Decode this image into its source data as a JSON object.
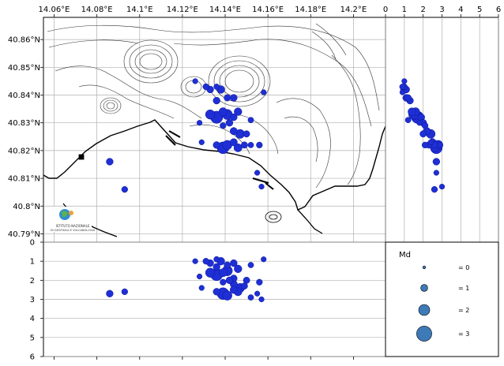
{
  "map": {
    "lon_ticks": [
      "14.06°E",
      "14.08°E",
      "14.1°E",
      "14.12°E",
      "14.14°E",
      "14.16°E",
      "14.18°E",
      "14.2°E"
    ],
    "lat_ticks": [
      "40.86°N",
      "40.85°N",
      "40.84°N",
      "40.83°N",
      "40.82°N",
      "40.81°N",
      "40.8°N",
      "40.79°N"
    ],
    "logo_text": [
      "ISTITUTO NAZIONALE",
      "DI GEOFISICA E VULCANOLOGIA"
    ]
  },
  "depth_right": {
    "ticks": [
      "0",
      "1",
      "2",
      "3",
      "4",
      "5",
      "6"
    ]
  },
  "depth_bottom": {
    "ticks": [
      "0",
      "1",
      "2",
      "3",
      "4",
      "5",
      "6"
    ]
  },
  "legend": {
    "title": "Md",
    "items": [
      {
        "label": "= 0",
        "md": 0
      },
      {
        "label": "= 1",
        "md": 1
      },
      {
        "label": "= 2",
        "md": 2
      },
      {
        "label": "= 3",
        "md": 3
      }
    ]
  },
  "chart_data": {
    "type": "scatter",
    "marker_color": "#1f2fd6",
    "legend_marker_color": "#3d7ab8",
    "xlim": [
      14.055,
      14.215
    ],
    "ylim": [
      40.787,
      40.868
    ],
    "depth_lim": [
      0,
      6
    ],
    "events": [
      {
        "lon": 14.131,
        "lat": 40.843,
        "depth": 1.0,
        "md": 0.8
      },
      {
        "lon": 14.133,
        "lat": 40.842,
        "depth": 1.1,
        "md": 1.0
      },
      {
        "lon": 14.136,
        "lat": 40.843,
        "depth": 0.9,
        "md": 0.7
      },
      {
        "lon": 14.138,
        "lat": 40.842,
        "depth": 1.0,
        "md": 1.2
      },
      {
        "lon": 14.136,
        "lat": 40.838,
        "depth": 1.3,
        "md": 1.0
      },
      {
        "lon": 14.141,
        "lat": 40.839,
        "depth": 1.2,
        "md": 0.9
      },
      {
        "lon": 14.144,
        "lat": 40.839,
        "depth": 1.1,
        "md": 1.0
      },
      {
        "lon": 14.133,
        "lat": 40.833,
        "depth": 1.6,
        "md": 1.6
      },
      {
        "lon": 14.136,
        "lat": 40.832,
        "depth": 1.7,
        "md": 2.3
      },
      {
        "lon": 14.139,
        "lat": 40.834,
        "depth": 1.6,
        "md": 1.3
      },
      {
        "lon": 14.141,
        "lat": 40.833,
        "depth": 1.5,
        "md": 1.8
      },
      {
        "lon": 14.144,
        "lat": 40.832,
        "depth": 1.9,
        "md": 1.0
      },
      {
        "lon": 14.146,
        "lat": 40.834,
        "depth": 1.4,
        "md": 1.2
      },
      {
        "lon": 14.142,
        "lat": 40.83,
        "depth": 2.0,
        "md": 1.0
      },
      {
        "lon": 14.139,
        "lat": 40.829,
        "depth": 2.1,
        "md": 0.8
      },
      {
        "lon": 14.144,
        "lat": 40.827,
        "depth": 2.2,
        "md": 1.1
      },
      {
        "lon": 14.147,
        "lat": 40.826,
        "depth": 2.4,
        "md": 1.5
      },
      {
        "lon": 14.15,
        "lat": 40.826,
        "depth": 2.0,
        "md": 0.9
      },
      {
        "lon": 14.136,
        "lat": 40.822,
        "depth": 2.6,
        "md": 1.0
      },
      {
        "lon": 14.139,
        "lat": 40.821,
        "depth": 2.7,
        "md": 2.2
      },
      {
        "lon": 14.141,
        "lat": 40.822,
        "depth": 2.8,
        "md": 1.6
      },
      {
        "lon": 14.144,
        "lat": 40.823,
        "depth": 2.5,
        "md": 1.1
      },
      {
        "lon": 14.146,
        "lat": 40.821,
        "depth": 2.6,
        "md": 1.3
      },
      {
        "lon": 14.149,
        "lat": 40.822,
        "depth": 2.3,
        "md": 0.9
      },
      {
        "lon": 14.152,
        "lat": 40.822,
        "depth": 2.9,
        "md": 0.7
      },
      {
        "lon": 14.156,
        "lat": 40.822,
        "depth": 2.1,
        "md": 0.8
      },
      {
        "lon": 14.129,
        "lat": 40.823,
        "depth": 2.4,
        "md": 0.6
      },
      {
        "lon": 14.128,
        "lat": 40.83,
        "depth": 1.8,
        "md": 0.6
      },
      {
        "lon": 14.126,
        "lat": 40.845,
        "depth": 1.0,
        "md": 0.6
      },
      {
        "lon": 14.152,
        "lat": 40.831,
        "depth": 1.2,
        "md": 0.7
      },
      {
        "lon": 14.158,
        "lat": 40.841,
        "depth": 0.9,
        "md": 0.6
      },
      {
        "lon": 14.155,
        "lat": 40.812,
        "depth": 2.7,
        "md": 0.6
      },
      {
        "lon": 14.157,
        "lat": 40.807,
        "depth": 3.0,
        "md": 0.6
      },
      {
        "lon": 14.086,
        "lat": 40.816,
        "depth": 2.7,
        "md": 1.0
      },
      {
        "lon": 14.093,
        "lat": 40.806,
        "depth": 2.6,
        "md": 0.8
      }
    ]
  }
}
